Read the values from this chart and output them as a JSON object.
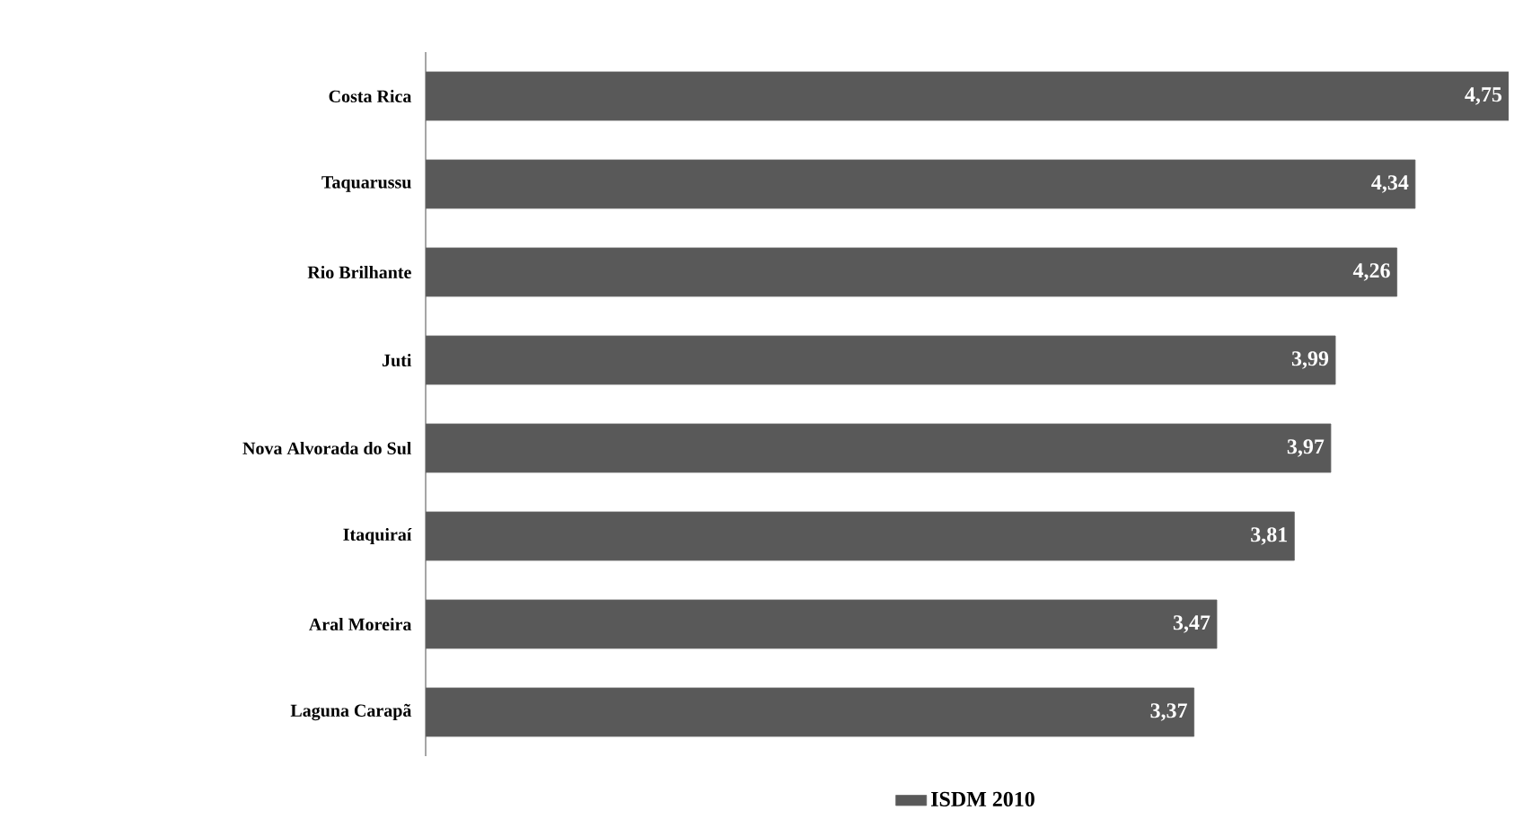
{
  "chart_data": {
    "type": "bar",
    "orientation": "horizontal",
    "categories": [
      "Costa Rica",
      "Taquarussu",
      "Rio Brilhante",
      "Juti",
      "Nova Alvorada do Sul",
      "Itaquiraí",
      "Aral Moreira",
      "Laguna Carapã"
    ],
    "series": [
      {
        "name": "ISDM 2010",
        "color": "#595959",
        "values": [
          4.75,
          4.34,
          4.26,
          3.99,
          3.97,
          3.81,
          3.47,
          3.37
        ],
        "value_labels": [
          "4,75",
          "4,34",
          "4,26",
          "3,99",
          "3,97",
          "3,81",
          "3,47",
          "3,37"
        ]
      }
    ],
    "legend": "bottom"
  }
}
